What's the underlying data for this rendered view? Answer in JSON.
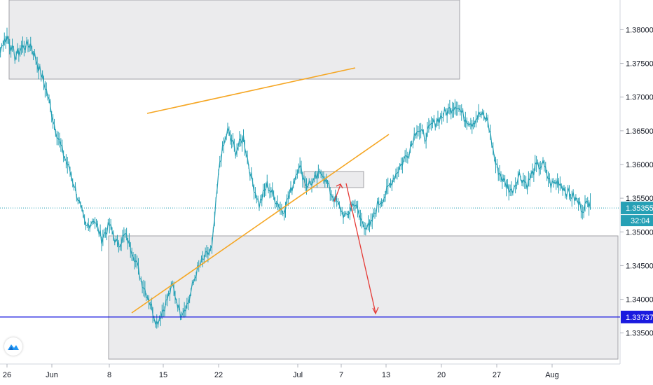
{
  "chart_data": {
    "type": "line",
    "symbol_color": "#26a0b5",
    "ylim": [
      1.3305,
      1.3842
    ],
    "y_ticks": [
      "1.38000",
      "1.37500",
      "1.37000",
      "1.36500",
      "1.36000",
      "1.35500",
      "1.35000",
      "1.34500",
      "1.34000",
      "1.33500"
    ],
    "x_ticks": [
      "26",
      "Jun",
      "8",
      "15",
      "22",
      "Jul",
      "7",
      "13",
      "20",
      "27",
      "Aug"
    ],
    "current_price": {
      "label": "1.35355",
      "countdown": "32:04",
      "value": 1.35355,
      "color": "#26a0b5"
    },
    "horizontal_line": {
      "label": "1.33737",
      "value": 1.33737,
      "color": "#1a1adf"
    },
    "series": [
      {
        "x": [
          -1.5,
          -1.0,
          -0.5,
          0.0,
          0.5,
          1.0,
          1.5,
          2.0,
          2.5,
          3.0,
          3.5,
          4.0,
          4.5,
          5.0,
          5.5,
          6.0,
          6.5,
          7.0,
          7.5,
          8.0,
          8.5,
          9.0,
          9.5,
          10.0,
          10.5,
          11.0,
          11.5,
          12.0,
          12.5,
          13.0,
          13.5,
          14.0,
          14.5,
          15.0,
          15.5,
          16.0,
          16.5,
          17.0,
          17.5,
          18.0,
          18.5,
          19.0,
          19.5,
          20.0,
          20.5,
          21.0,
          21.5,
          22.0,
          22.5,
          23.0,
          23.5,
          24.0,
          24.5,
          25.0,
          25.5,
          26.0,
          26.5,
          27.0,
          27.5,
          28.0,
          28.5,
          29.0,
          29.5,
          30.0,
          30.5,
          31.0,
          31.5,
          32.0,
          32.5,
          33.0,
          33.5,
          34.0,
          34.5,
          35.0,
          35.5,
          36.0,
          36.5,
          37.0
        ],
        "y": [
          1.3815,
          1.3785,
          1.377,
          1.379,
          1.376,
          1.3775,
          1.3778,
          1.3745,
          1.371,
          1.366,
          1.362,
          1.359,
          1.355,
          1.3505,
          1.352,
          1.349,
          1.351,
          1.348,
          1.3495,
          1.347,
          1.343,
          1.34,
          1.3365,
          1.339,
          1.342,
          1.338,
          1.3395,
          1.344,
          1.346,
          1.3475,
          1.3605,
          1.365,
          1.362,
          1.364,
          1.358,
          1.354,
          1.357,
          1.355,
          1.353,
          1.356,
          1.36,
          1.357,
          1.3575,
          1.359,
          1.356,
          1.354,
          1.352,
          1.3545,
          1.3515,
          1.3505,
          1.354,
          1.3555,
          1.358,
          1.36,
          1.362,
          1.3655,
          1.364,
          1.366,
          1.367,
          1.368,
          1.369,
          1.367,
          1.3662,
          1.3675,
          1.3665,
          1.36,
          1.3575,
          1.356,
          1.3585,
          1.357,
          1.3595,
          1.36,
          1.357,
          1.3575,
          1.356,
          1.355,
          1.3535,
          1.3545
        ]
      }
    ]
  }
}
